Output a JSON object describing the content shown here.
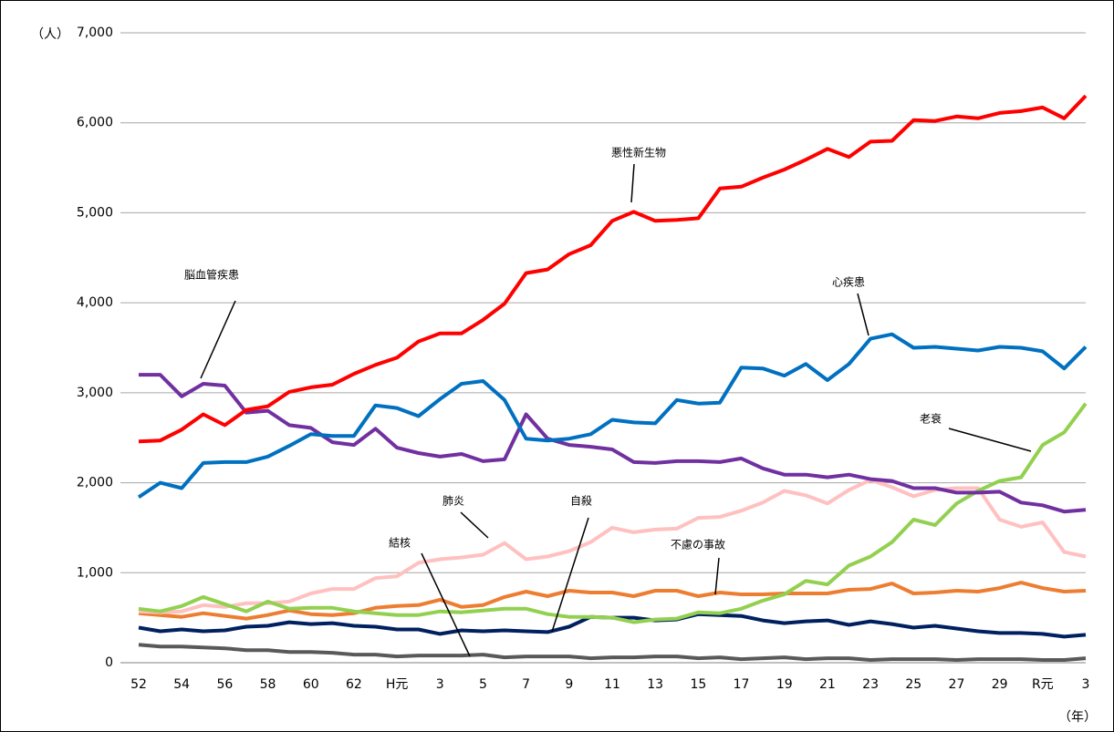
{
  "chart_data": {
    "type": "line",
    "y_unit": "（人）",
    "x_unit": "（年）",
    "categories": [
      "52",
      null,
      "54",
      null,
      "56",
      null,
      "58",
      null,
      "60",
      null,
      "62",
      null,
      "H元",
      null,
      "3",
      null,
      "5",
      null,
      "7",
      null,
      "9",
      null,
      "11",
      null,
      "13",
      null,
      "15",
      null,
      "17",
      null,
      "19",
      null,
      "21",
      null,
      "23",
      null,
      "25",
      null,
      "27",
      null,
      "29",
      null,
      "R元",
      null,
      "3"
    ],
    "ylim": [
      0,
      7000
    ],
    "yticks": [
      0,
      {
        "value": 1000,
        "label": "1,000"
      },
      {
        "value": 2000,
        "label": "2,000"
      },
      {
        "value": 3000,
        "label": "3,000"
      },
      {
        "value": 4000,
        "label": "4,000"
      },
      {
        "value": 5000,
        "label": "5,000"
      },
      {
        "value": 6000,
        "label": "6,000"
      },
      {
        "value": 7000,
        "label": "7,000"
      }
    ],
    "grid": true,
    "series": [
      {
        "name": "悪性新生物",
        "color": "#ff0000",
        "values": [
          2460,
          2470,
          2590,
          2760,
          2640,
          2810,
          2850,
          3010,
          3060,
          3090,
          3210,
          3310,
          3390,
          3570,
          3660,
          3660,
          3810,
          3990,
          4330,
          4370,
          4540,
          4640,
          4910,
          5010,
          4910,
          4920,
          4940,
          5270,
          5290,
          5390,
          5480,
          5590,
          5710,
          5620,
          5790,
          5800,
          6030,
          6020,
          6070,
          6050,
          6110,
          6130,
          6170,
          6050,
          6300
        ]
      },
      {
        "name": "心疾患",
        "color": "#0070c0",
        "values": [
          1840,
          2000,
          1940,
          2220,
          2230,
          2230,
          2290,
          2410,
          2540,
          2520,
          2520,
          2860,
          2830,
          2740,
          2930,
          3100,
          3130,
          2920,
          2490,
          2470,
          2490,
          2540,
          2700,
          2670,
          2660,
          2920,
          2880,
          2890,
          3280,
          3270,
          3190,
          3320,
          3140,
          3320,
          3600,
          3650,
          3500,
          3510,
          3490,
          3470,
          3510,
          3500,
          3460,
          3270,
          3510
        ]
      },
      {
        "name": "脳血管疾患",
        "color": "#7030a0",
        "values": [
          3200,
          3200,
          2960,
          3100,
          3080,
          2780,
          2800,
          2640,
          2610,
          2450,
          2420,
          2600,
          2390,
          2330,
          2290,
          2320,
          2240,
          2260,
          2760,
          2490,
          2420,
          2400,
          2370,
          2230,
          2220,
          2240,
          2240,
          2230,
          2270,
          2160,
          2090,
          2090,
          2060,
          2090,
          2040,
          2020,
          1940,
          1940,
          1890,
          1890,
          1900,
          1780,
          1750,
          1680,
          1700
        ]
      },
      {
        "name": "老衰",
        "color": "#92d050",
        "values": [
          600,
          570,
          630,
          730,
          650,
          570,
          680,
          600,
          610,
          610,
          570,
          550,
          530,
          530,
          570,
          560,
          580,
          600,
          600,
          540,
          510,
          510,
          500,
          450,
          480,
          490,
          560,
          550,
          600,
          690,
          760,
          910,
          870,
          1080,
          1180,
          1340,
          1590,
          1530,
          1770,
          1910,
          2020,
          2060,
          2420,
          2560,
          2880
        ]
      },
      {
        "name": "肺炎",
        "color": "#ffc0c0",
        "values": [
          570,
          560,
          570,
          640,
          620,
          660,
          660,
          680,
          770,
          820,
          820,
          940,
          960,
          1110,
          1150,
          1170,
          1200,
          1330,
          1150,
          1180,
          1240,
          1340,
          1500,
          1450,
          1480,
          1490,
          1610,
          1620,
          1690,
          1780,
          1910,
          1860,
          1770,
          1920,
          2030,
          1950,
          1850,
          1920,
          1940,
          1940,
          1590,
          1510,
          1560,
          1230,
          1180
        ]
      },
      {
        "name": "不慮の事故",
        "color": "#ed7d31",
        "values": [
          550,
          530,
          510,
          550,
          520,
          490,
          530,
          580,
          540,
          530,
          550,
          610,
          630,
          640,
          700,
          620,
          640,
          730,
          790,
          740,
          800,
          780,
          780,
          740,
          800,
          800,
          740,
          780,
          760,
          760,
          770,
          770,
          770,
          810,
          820,
          880,
          770,
          780,
          800,
          790,
          830,
          890,
          830,
          790,
          800
        ]
      },
      {
        "name": "自殺",
        "color": "#002060",
        "values": [
          390,
          350,
          370,
          350,
          360,
          400,
          410,
          450,
          430,
          440,
          410,
          400,
          370,
          370,
          320,
          360,
          350,
          360,
          350,
          340,
          400,
          510,
          500,
          500,
          470,
          480,
          540,
          530,
          520,
          470,
          440,
          460,
          470,
          420,
          460,
          430,
          390,
          410,
          380,
          350,
          330,
          330,
          320,
          290,
          310
        ]
      },
      {
        "name": "結核",
        "color": "#595959",
        "values": [
          200,
          180,
          180,
          170,
          160,
          140,
          140,
          120,
          120,
          110,
          90,
          90,
          70,
          80,
          80,
          80,
          90,
          60,
          70,
          70,
          70,
          50,
          60,
          60,
          70,
          70,
          50,
          60,
          40,
          50,
          60,
          40,
          50,
          50,
          30,
          40,
          40,
          40,
          30,
          40,
          40,
          40,
          30,
          30,
          50
        ]
      }
    ]
  }
}
